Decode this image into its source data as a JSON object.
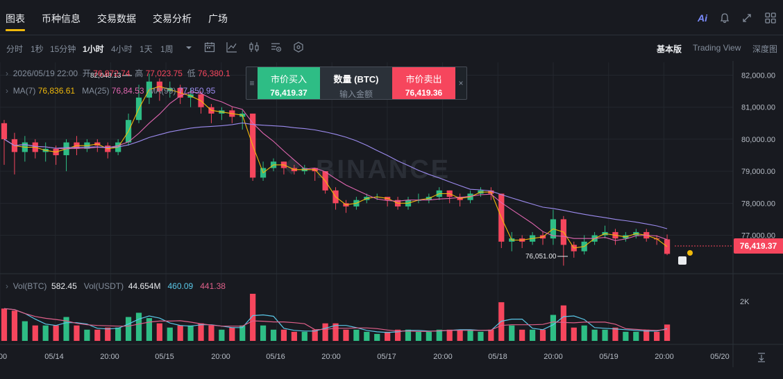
{
  "nav": {
    "tabs": [
      "图表",
      "币种信息",
      "交易数据",
      "交易分析",
      "广场"
    ],
    "active_tab": 0,
    "ai_label": "Ai"
  },
  "toolbar": {
    "timeframes": [
      "分时",
      "1秒",
      "15分钟",
      "1小时",
      "4小时",
      "1天",
      "1周"
    ],
    "active_timeframe": 3,
    "views": [
      "基本版",
      "Trading View",
      "深度图"
    ],
    "active_view": 0
  },
  "ohlc": {
    "date": "2026/05/19 22:00",
    "open_label": "开",
    "open": "76,872.74",
    "high_label": "高",
    "high": "77,023.75",
    "low_label": "低",
    "low": "76,380.1"
  },
  "ma": {
    "ma7_label": "MA(7)",
    "ma7": "76,836.61",
    "ma25_label": "MA(25)",
    "ma25": "76,8",
    "ma25_tail": "4.53",
    "ma99_label": "MA(99)",
    "ma99": "77,850.95"
  },
  "trade_box": {
    "buy_label": "市价买入",
    "buy_price": "76,419.37",
    "qty_label": "数量 (BTC)",
    "qty_placeholder": "输入金额",
    "sell_label": "市价卖出",
    "sell_price": "76,419.36"
  },
  "watermark": "BINANCE",
  "price_axis": [
    "82,000.00",
    "81,000.00",
    "80,000.00",
    "79,000.00",
    "78,000.00",
    "77,000.00"
  ],
  "current_price": "76,419.37",
  "high_marker": "82,048.13",
  "low_marker": "76,051.00",
  "volume": {
    "vol_btc_label": "Vol(BTC)",
    "vol_btc": "582.45",
    "vol_usdt_label": "Vol(USDT)",
    "vol_usdt": "44.654M",
    "ma1": "460.09",
    "ma2": "441.38",
    "axis_label": "2K"
  },
  "time_axis": [
    "00",
    "05/14",
    "20:00",
    "05/15",
    "20:00",
    "05/16",
    "20:00",
    "05/17",
    "20:00",
    "05/18",
    "20:00",
    "05/19",
    "20:00",
    "05/20"
  ],
  "colors": {
    "up": "#2ebd85",
    "down": "#f6465d",
    "ma7": "#f0b90b",
    "ma25": "#e066b0",
    "ma99": "#9d8cf0",
    "vol_ma1": "#5ac8e8",
    "vol_ma2": "#e0608a"
  },
  "chart_data": {
    "type": "candlestick",
    "interval": "1小时",
    "ylim": [
      75800,
      82400
    ],
    "candles_sampled": [
      [
        80500,
        80000,
        80600,
        79200
      ],
      [
        80000,
        79600,
        80200,
        78900
      ],
      [
        79600,
        79900,
        80100,
        79300
      ],
      [
        79900,
        79600,
        80000,
        79400
      ],
      [
        79600,
        79700,
        79900,
        79300
      ],
      [
        79700,
        79500,
        79800,
        79200
      ],
      [
        79500,
        79900,
        80000,
        79000
      ],
      [
        79900,
        79700,
        80100,
        79500
      ],
      [
        79700,
        79900,
        80000,
        79600
      ],
      [
        79900,
        79800,
        80000,
        79600
      ],
      [
        79800,
        79600,
        79900,
        79400
      ],
      [
        79600,
        79900,
        80000,
        79500
      ],
      [
        79900,
        80600,
        80800,
        79800
      ],
      [
        80600,
        81300,
        81700,
        80500
      ],
      [
        81300,
        81800,
        82048,
        81100
      ],
      [
        81800,
        81500,
        81900,
        81200
      ],
      [
        81500,
        81600,
        81800,
        81300
      ],
      [
        81600,
        81300,
        81700,
        81100
      ],
      [
        81300,
        81400,
        81600,
        81000
      ],
      [
        81400,
        81000,
        81500,
        80800
      ],
      [
        81000,
        80800,
        81100,
        80500
      ],
      [
        80800,
        80900,
        81000,
        80600
      ],
      [
        80900,
        80700,
        81000,
        80500
      ],
      [
        80700,
        80800,
        80900,
        80300
      ],
      [
        80800,
        78800,
        80800,
        78700
      ],
      [
        78800,
        79100,
        79300,
        78700
      ],
      [
        79100,
        79300,
        79400,
        79000
      ],
      [
        79300,
        79100,
        79300,
        78900
      ],
      [
        79100,
        79000,
        79200,
        78900
      ],
      [
        79000,
        79100,
        79200,
        78900
      ],
      [
        79100,
        79000,
        79100,
        78700
      ],
      [
        79000,
        78400,
        79000,
        78300
      ],
      [
        78400,
        78000,
        78500,
        77800
      ],
      [
        78000,
        77900,
        78100,
        77700
      ],
      [
        77900,
        78100,
        78200,
        77800
      ],
      [
        78100,
        78200,
        78300,
        78000
      ],
      [
        78200,
        78200,
        78300,
        78100
      ],
      [
        78200,
        78100,
        78200,
        77900
      ],
      [
        78100,
        77900,
        78200,
        77800
      ],
      [
        77900,
        78100,
        78200,
        77800
      ],
      [
        78100,
        78100,
        78300,
        78000
      ],
      [
        78100,
        78200,
        78300,
        78000
      ],
      [
        78200,
        78400,
        78500,
        78100
      ],
      [
        78400,
        78200,
        78400,
        78000
      ],
      [
        78200,
        78100,
        78300,
        77900
      ],
      [
        78100,
        78300,
        78400,
        78000
      ],
      [
        78300,
        78400,
        78500,
        78200
      ],
      [
        78400,
        78300,
        78500,
        78100
      ],
      [
        78300,
        76800,
        78300,
        76600
      ],
      [
        76800,
        76900,
        77100,
        76500
      ],
      [
        76900,
        76800,
        77000,
        76600
      ],
      [
        76800,
        77000,
        77100,
        76700
      ],
      [
        77000,
        76900,
        77100,
        76700
      ],
      [
        76900,
        77500,
        77800,
        76700
      ],
      [
        77500,
        76700,
        77600,
        76051
      ],
      [
        76700,
        76500,
        76800,
        76300
      ],
      [
        76500,
        76800,
        77000,
        76400
      ],
      [
        76800,
        77000,
        77100,
        76700
      ],
      [
        77000,
        77100,
        77300,
        76900
      ],
      [
        77100,
        76900,
        77200,
        76700
      ],
      [
        76900,
        77000,
        77100,
        76800
      ],
      [
        77000,
        77100,
        77200,
        76900
      ],
      [
        77100,
        76900,
        77200,
        76800
      ],
      [
        76900,
        76872,
        77000,
        76700
      ],
      [
        76872,
        76419,
        77024,
        76380
      ]
    ]
  }
}
